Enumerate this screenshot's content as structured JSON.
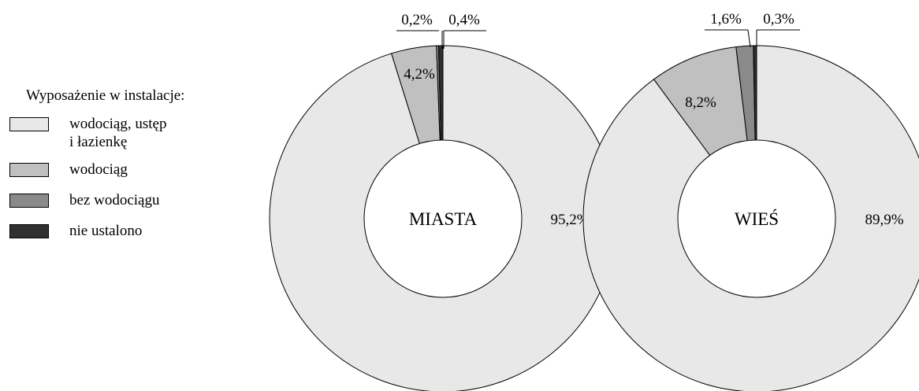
{
  "chart_data": {
    "type": "pie",
    "legend": {
      "title": "Wyposażenie w instalacje:",
      "entries": [
        {
          "label": "wodociąg, ustęp\ni łazienkę",
          "color": "#e8e8e8"
        },
        {
          "label": "wodociąg",
          "color": "#c0c0c0"
        },
        {
          "label": "bez wodociągu",
          "color": "#8a8a8a"
        },
        {
          "label": "nie ustalono",
          "color": "#303030"
        }
      ]
    },
    "charts": [
      {
        "title": "MIASTA",
        "slices": [
          {
            "category": "wodociąg, ustęp i łazienkę",
            "value": 95.2,
            "label": "95,2%"
          },
          {
            "category": "wodociąg",
            "value": 4.2,
            "label": "4,2%"
          },
          {
            "category": "bez wodociągu",
            "value": 0.2,
            "label": "0,2%"
          },
          {
            "category": "nie ustalono",
            "value": 0.4,
            "label": "0,4%"
          }
        ]
      },
      {
        "title": "WIEŚ",
        "slices": [
          {
            "category": "wodociąg, ustęp i łazienkę",
            "value": 89.9,
            "label": "89,9%"
          },
          {
            "category": "wodociąg",
            "value": 8.2,
            "label": "8,2%"
          },
          {
            "category": "bez wodociągu",
            "value": 1.6,
            "label": "1,6%"
          },
          {
            "category": "nie ustalono",
            "value": 0.3,
            "label": "0,3%"
          }
        ]
      }
    ]
  }
}
